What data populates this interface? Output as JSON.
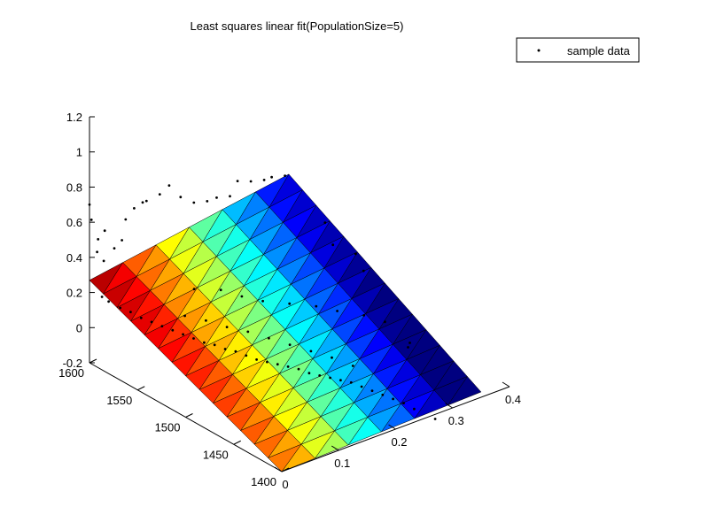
{
  "chart_data": {
    "type": "surface3d",
    "title": "Least squares linear fit(PopulationSize=5)",
    "xlabel": "",
    "ylabel": "",
    "zlabel": "",
    "x_axis": {
      "ticks": [
        0,
        0.1,
        0.2,
        0.3,
        0.4
      ],
      "range": [
        0,
        0.4
      ]
    },
    "y_axis": {
      "ticks": [
        1400,
        1450,
        1500,
        1550,
        1600
      ],
      "range": [
        1400,
        1600
      ]
    },
    "z_axis": {
      "ticks": [
        -0.2,
        0,
        0.2,
        0.4,
        0.6,
        0.8,
        1,
        1.2
      ],
      "range": [
        -0.2,
        1.2
      ]
    },
    "legend": {
      "position": "top-right",
      "entries": [
        "sample data"
      ]
    },
    "surface": {
      "colormap": "jet",
      "x_range": [
        0,
        0.35
      ],
      "y_range": [
        1400,
        1600
      ],
      "z_corners": {
        "x0_y1600": 0.27,
        "x0_y1400": -0.2,
        "x035_y1600": 0.45,
        "x035_y1400": -0.17
      }
    },
    "series": [
      {
        "name": "sample data",
        "marker": "dot",
        "color": "#000000",
        "points": [
          [
            0.0,
            1600,
            0.7
          ],
          [
            0.0,
            1598,
            0.62
          ],
          [
            0.01,
            1597,
            0.5
          ],
          [
            0.02,
            1596,
            0.54
          ],
          [
            0.005,
            1595,
            0.44
          ],
          [
            0.015,
            1594,
            0.38
          ],
          [
            0.03,
            1592,
            0.44
          ],
          [
            0.04,
            1590,
            0.48
          ],
          [
            0.05,
            1592,
            0.58
          ],
          [
            0.07,
            1595,
            0.61
          ],
          [
            0.09,
            1598,
            0.61
          ],
          [
            0.1,
            1600,
            0.6
          ],
          [
            0.12,
            1598,
            0.62
          ],
          [
            0.14,
            1600,
            0.64
          ],
          [
            0.16,
            1600,
            0.55
          ],
          [
            0.18,
            1598,
            0.5
          ],
          [
            0.2,
            1596,
            0.49
          ],
          [
            0.22,
            1598,
            0.48
          ],
          [
            0.24,
            1596,
            0.47
          ],
          [
            0.26,
            1600,
            0.52
          ],
          [
            0.28,
            1598,
            0.5
          ],
          [
            0.3,
            1596,
            0.49
          ],
          [
            0.32,
            1600,
            0.47
          ],
          [
            0.34,
            1598,
            0.46
          ],
          [
            0.005,
            1590,
            0.2
          ],
          [
            0.01,
            1586,
            0.18
          ],
          [
            0.02,
            1580,
            0.15
          ],
          [
            0.03,
            1575,
            0.13
          ],
          [
            0.04,
            1570,
            0.1
          ],
          [
            0.05,
            1565,
            0.08
          ],
          [
            0.06,
            1560,
            0.06
          ],
          [
            0.07,
            1555,
            0.04
          ],
          [
            0.08,
            1550,
            0.02
          ],
          [
            0.09,
            1545,
            0.0
          ],
          [
            0.1,
            1540,
            -0.02
          ],
          [
            0.11,
            1535,
            -0.03
          ],
          [
            0.12,
            1530,
            -0.05
          ],
          [
            0.13,
            1525,
            -0.06
          ],
          [
            0.14,
            1520,
            -0.08
          ],
          [
            0.15,
            1515,
            -0.1
          ],
          [
            0.16,
            1510,
            -0.11
          ],
          [
            0.17,
            1505,
            -0.12
          ],
          [
            0.18,
            1500,
            -0.13
          ],
          [
            0.19,
            1495,
            -0.14
          ],
          [
            0.2,
            1490,
            -0.16
          ],
          [
            0.21,
            1485,
            -0.17
          ],
          [
            0.22,
            1480,
            -0.18
          ],
          [
            0.23,
            1475,
            -0.19
          ],
          [
            0.24,
            1470,
            -0.2
          ],
          [
            0.25,
            1465,
            -0.22
          ],
          [
            0.26,
            1460,
            -0.24
          ],
          [
            0.27,
            1455,
            -0.26
          ],
          [
            0.28,
            1450,
            -0.28
          ],
          [
            0.29,
            1445,
            -0.3
          ],
          [
            0.3,
            1440,
            -0.33
          ],
          [
            0.32,
            1430,
            -0.38
          ],
          [
            0.1,
            1560,
            0.07
          ],
          [
            0.12,
            1550,
            0.05
          ],
          [
            0.14,
            1540,
            0.02
          ],
          [
            0.16,
            1530,
            0.0
          ],
          [
            0.18,
            1520,
            -0.03
          ],
          [
            0.2,
            1510,
            -0.06
          ],
          [
            0.22,
            1500,
            -0.09
          ],
          [
            0.24,
            1490,
            -0.12
          ],
          [
            0.26,
            1480,
            -0.16
          ],
          [
            0.15,
            1580,
            0.1
          ],
          [
            0.18,
            1570,
            0.09
          ],
          [
            0.2,
            1560,
            0.06
          ],
          [
            0.22,
            1550,
            0.04
          ],
          [
            0.25,
            1540,
            0.02
          ],
          [
            0.28,
            1530,
            0.0
          ],
          [
            0.3,
            1520,
            -0.02
          ],
          [
            0.33,
            1510,
            -0.05
          ],
          [
            0.35,
            1500,
            -0.08
          ],
          [
            0.36,
            1560,
            0.16
          ],
          [
            0.38,
            1580,
            0.2
          ],
          [
            0.34,
            1470,
            -0.12
          ],
          [
            0.36,
            1480,
            -0.15
          ],
          [
            0.38,
            1540,
            0.05
          ],
          [
            0.4,
            1560,
            0.06
          ]
        ]
      }
    ]
  }
}
